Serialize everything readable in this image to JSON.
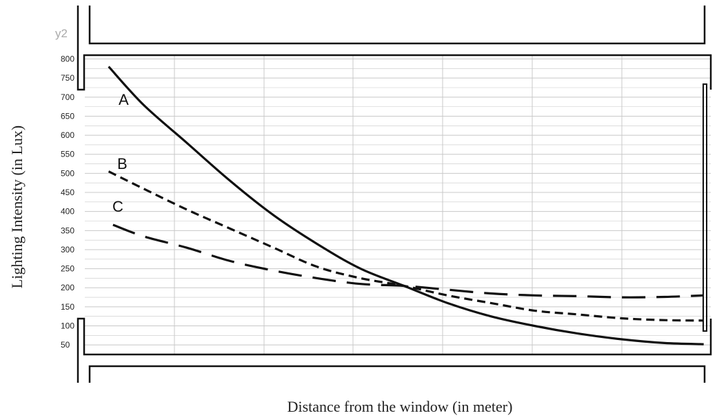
{
  "chart_data": {
    "type": "line",
    "xlabel": "Distance from the window (in meter)",
    "ylabel": "Lighting Intensity (in Lux)",
    "corner_label": "y2",
    "ylim": [
      25,
      810
    ],
    "xlim": [
      0,
      7
    ],
    "yticks": [
      50,
      100,
      150,
      200,
      250,
      300,
      350,
      400,
      450,
      500,
      550,
      600,
      650,
      700,
      750,
      800
    ],
    "grid": true,
    "series": [
      {
        "name": "A",
        "style": "solid",
        "color": "#111111",
        "x": [
          0.1,
          0.5,
          1.0,
          1.5,
          2.0,
          2.5,
          3.0,
          3.5,
          4.0,
          4.5,
          5.0,
          5.5,
          6.0,
          6.5,
          6.95
        ],
        "y": [
          780,
          680,
          580,
          480,
          390,
          315,
          250,
          205,
          160,
          125,
          100,
          80,
          65,
          55,
          52
        ]
      },
      {
        "name": "B",
        "style": "dashed",
        "color": "#111111",
        "x": [
          0.1,
          0.5,
          1.0,
          1.5,
          2.0,
          2.5,
          3.0,
          3.5,
          4.0,
          4.5,
          5.0,
          5.5,
          6.0,
          6.5,
          6.95
        ],
        "y": [
          505,
          460,
          405,
          355,
          305,
          255,
          225,
          205,
          180,
          160,
          140,
          130,
          120,
          115,
          114
        ]
      },
      {
        "name": "C",
        "style": "long-dashed",
        "color": "#111111",
        "x": [
          0.15,
          0.5,
          1.0,
          1.5,
          2.0,
          2.5,
          3.0,
          3.5,
          4.0,
          4.5,
          5.0,
          5.5,
          6.0,
          6.5,
          6.95
        ],
        "y": [
          365,
          335,
          305,
          270,
          245,
          225,
          210,
          205,
          195,
          185,
          180,
          178,
          175,
          176,
          180
        ]
      }
    ]
  }
}
